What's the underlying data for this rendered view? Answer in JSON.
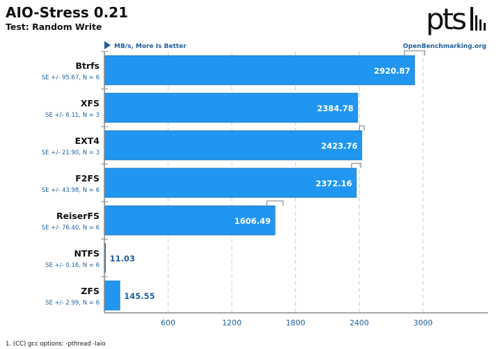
{
  "chart_data": {
    "type": "bar",
    "orientation": "horizontal",
    "title": "AIO-Stress 0.21",
    "subtitle": "Test: Random Write",
    "unit_label": "MB/s, More Is Better",
    "source": "OpenBenchmarking.org",
    "logo": "ptsl",
    "categories": [
      "Btrfs",
      "XFS",
      "EXT4",
      "F2FS",
      "ReiserFS",
      "NTFS",
      "ZFS"
    ],
    "values": [
      2920.87,
      2384.78,
      2423.76,
      2372.16,
      1606.49,
      11.03,
      145.55
    ],
    "value_labels": [
      "2920.87",
      "2384.78",
      "2423.76",
      "2372.16",
      "1606.49",
      "11.03",
      "145.55"
    ],
    "se_labels": [
      "SE +/- 95.67, N = 6",
      "SE +/- 6.11, N = 3",
      "SE +/- 21.90, N = 3",
      "SE +/- 43.98, N = 6",
      "SE +/- 76.40, N = 6",
      "SE +/- 0.16, N = 6",
      "SE +/- 2.99, N = 6"
    ],
    "se": [
      95.67,
      6.11,
      21.9,
      43.98,
      76.4,
      0.16,
      2.99
    ],
    "xticks": [
      600,
      1200,
      1800,
      2400,
      3000
    ],
    "xlim": [
      0,
      3610
    ],
    "grid": true,
    "footnote": "1. (CC) gcc options: -pthread -laio",
    "colors": {
      "bar": "#2196f0",
      "bar_border": "#1a6fb8",
      "title": "#111111",
      "label_blue": "#1f5f9a",
      "grid": "#cccccc"
    }
  }
}
